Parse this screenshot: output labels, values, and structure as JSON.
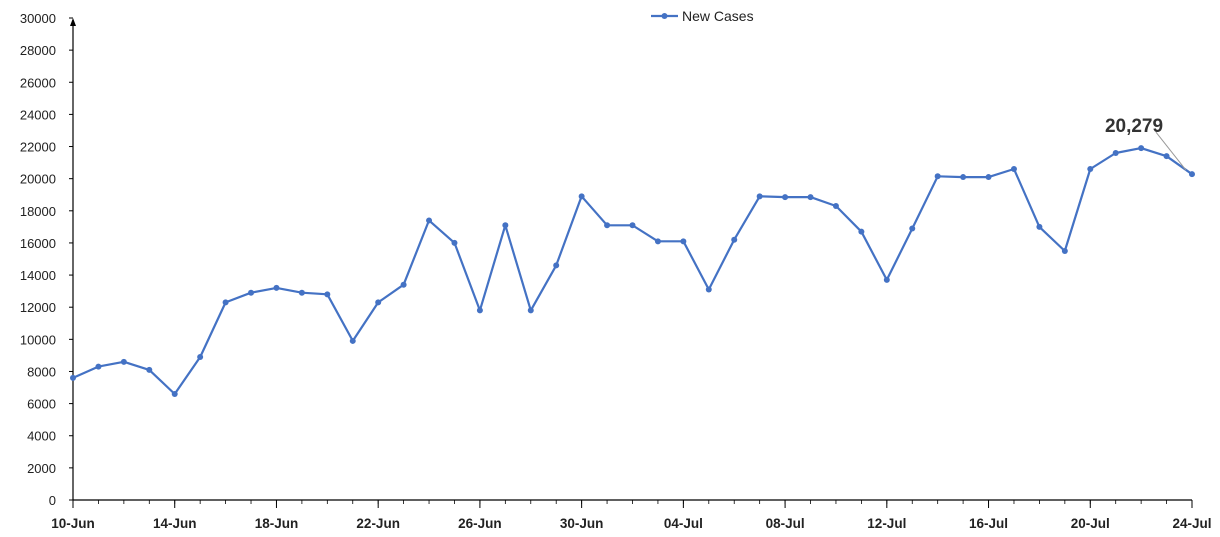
{
  "chart_data": {
    "type": "line",
    "title": "",
    "xlabel": "",
    "ylabel": "",
    "ylim": [
      0,
      30000
    ],
    "y_ticks": [
      0,
      2000,
      4000,
      6000,
      8000,
      10000,
      12000,
      14000,
      16000,
      18000,
      20000,
      22000,
      24000,
      26000,
      28000,
      30000
    ],
    "x_tick_labels": [
      "10-Jun",
      "14-Jun",
      "18-Jun",
      "22-Jun",
      "26-Jun",
      "30-Jun",
      "04-Jul",
      "08-Jul",
      "12-Jul",
      "16-Jul",
      "20-Jul",
      "24-Jul"
    ],
    "grid": false,
    "legend_position": "top-center",
    "x": [
      "10-Jun",
      "11-Jun",
      "12-Jun",
      "13-Jun",
      "14-Jun",
      "15-Jun",
      "16-Jun",
      "17-Jun",
      "18-Jun",
      "19-Jun",
      "20-Jun",
      "21-Jun",
      "22-Jun",
      "23-Jun",
      "24-Jun",
      "25-Jun",
      "26-Jun",
      "27-Jun",
      "28-Jun",
      "29-Jun",
      "30-Jun",
      "01-Jul",
      "02-Jul",
      "03-Jul",
      "04-Jul",
      "05-Jul",
      "06-Jul",
      "07-Jul",
      "08-Jul",
      "09-Jul",
      "10-Jul",
      "11-Jul",
      "12-Jul",
      "13-Jul",
      "14-Jul",
      "15-Jul",
      "16-Jul",
      "17-Jul",
      "18-Jul",
      "19-Jul",
      "20-Jul",
      "21-Jul",
      "22-Jul",
      "23-Jul",
      "24-Jul"
    ],
    "series": [
      {
        "name": "New Cases",
        "color": "#4472C4",
        "values": [
          7600,
          8300,
          8600,
          8100,
          6600,
          8900,
          12300,
          12900,
          13200,
          12900,
          12800,
          9900,
          12300,
          13400,
          17400,
          16000,
          11800,
          17100,
          11800,
          14600,
          18900,
          17100,
          17100,
          16100,
          16100,
          13100,
          16200,
          18900,
          18850,
          18850,
          18300,
          16700,
          13700,
          16900,
          20150,
          20100,
          20100,
          20600,
          17000,
          15500,
          20600,
          21600,
          21900,
          21400,
          20279
        ]
      }
    ],
    "annotations": [
      {
        "text": "20,279",
        "x": "24-Jul",
        "y": 20279
      }
    ]
  }
}
